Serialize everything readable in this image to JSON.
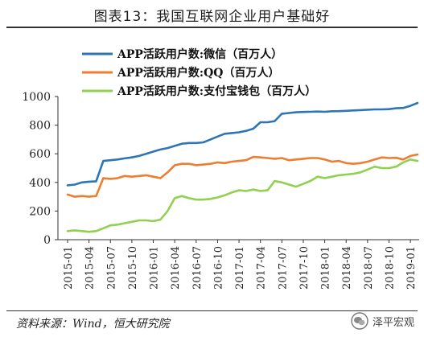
{
  "title": "图表13：我国互联网企业用户基础好",
  "source": "资料来源：Wind，恒大研究院",
  "watermark": "泽平宏观",
  "chart_data": {
    "type": "line",
    "ylim": [
      0,
      1000
    ],
    "yticks": [
      0,
      200,
      400,
      600,
      800,
      1000
    ],
    "x": [
      "2015-01",
      "2015-02",
      "2015-03",
      "2015-04",
      "2015-05",
      "2015-06",
      "2015-07",
      "2015-08",
      "2015-09",
      "2015-10",
      "2015-11",
      "2015-12",
      "2016-01",
      "2016-02",
      "2016-03",
      "2016-04",
      "2016-05",
      "2016-06",
      "2016-07",
      "2016-08",
      "2016-09",
      "2016-10",
      "2016-11",
      "2016-12",
      "2017-01",
      "2017-02",
      "2017-03",
      "2017-04",
      "2017-05",
      "2017-06",
      "2017-07",
      "2017-08",
      "2017-09",
      "2017-10",
      "2017-11",
      "2017-12",
      "2018-01",
      "2018-02",
      "2018-03",
      "2018-04",
      "2018-05",
      "2018-06",
      "2018-07",
      "2018-08",
      "2018-09",
      "2018-10",
      "2018-11",
      "2018-12",
      "2019-01",
      "2019-02"
    ],
    "xtick_labels": [
      "2015-01",
      "2015-04",
      "2015-07",
      "2015-10",
      "2016-01",
      "2016-04",
      "2016-07",
      "2016-10",
      "2017-01",
      "2017-04",
      "2017-07",
      "2017-10",
      "2018-01",
      "2018-04",
      "2018-07",
      "2018-10",
      "2019-01"
    ],
    "legend_position": "top-left",
    "grid": false,
    "series": [
      {
        "name": "APP活跃用户数:微信（百万人）",
        "color": "#2e75b6",
        "values": [
          380,
          385,
          400,
          405,
          408,
          550,
          555,
          560,
          568,
          575,
          585,
          600,
          615,
          630,
          640,
          655,
          670,
          675,
          675,
          680,
          700,
          720,
          740,
          745,
          750,
          760,
          775,
          820,
          820,
          828,
          880,
          885,
          890,
          892,
          893,
          895,
          893,
          897,
          898,
          900,
          903,
          905,
          908,
          910,
          910,
          912,
          918,
          920,
          935,
          955
        ]
      },
      {
        "name": "APP活跃用户数:QQ（百万人）",
        "color": "#ed7d31",
        "values": [
          315,
          300,
          305,
          300,
          305,
          430,
          425,
          430,
          445,
          440,
          445,
          450,
          440,
          430,
          470,
          520,
          530,
          530,
          520,
          525,
          530,
          540,
          535,
          545,
          550,
          555,
          578,
          575,
          570,
          565,
          570,
          555,
          560,
          565,
          570,
          570,
          560,
          545,
          550,
          535,
          530,
          535,
          545,
          560,
          575,
          570,
          572,
          560,
          585,
          595
        ]
      },
      {
        "name": "APP活跃用户数:支付宝钱包（百万人）",
        "color": "#92d050",
        "values": [
          60,
          65,
          60,
          55,
          60,
          80,
          100,
          105,
          115,
          125,
          135,
          135,
          130,
          140,
          200,
          290,
          305,
          290,
          280,
          280,
          285,
          295,
          310,
          330,
          345,
          340,
          350,
          340,
          345,
          410,
          400,
          385,
          370,
          390,
          410,
          440,
          430,
          440,
          450,
          455,
          460,
          470,
          490,
          510,
          500,
          500,
          510,
          540,
          560,
          550
        ]
      }
    ]
  }
}
